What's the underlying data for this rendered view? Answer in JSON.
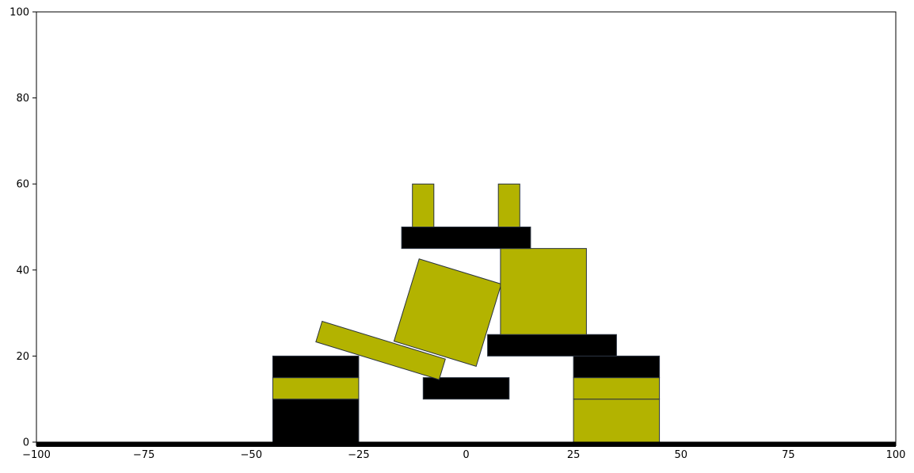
{
  "chart_data": {
    "type": "blocks",
    "xlim": [
      -100,
      100
    ],
    "ylim": [
      0,
      100
    ],
    "x_ticks": [
      -100,
      -75,
      -50,
      -25,
      0,
      25,
      50,
      75,
      100
    ],
    "x_tick_labels": [
      "−100",
      "−75",
      "−50",
      "−25",
      "0",
      "25",
      "50",
      "75",
      "100"
    ],
    "y_ticks": [
      0,
      20,
      40,
      60,
      80,
      100
    ],
    "y_tick_labels": [
      "0",
      "20",
      "40",
      "60",
      "80",
      "100"
    ],
    "grid": false,
    "colors": {
      "olive": "#b3b300",
      "black": "#000000",
      "edge": "#2a3340"
    },
    "ground": {
      "x0": -100,
      "x1": 100,
      "y0": -1,
      "y1": 0,
      "color": "black"
    },
    "blocks": [
      {
        "name": "left-base-black",
        "cx": -35,
        "cy": 5,
        "w": 20,
        "h": 10,
        "angle": 0,
        "color": "black"
      },
      {
        "name": "left-mid-olive",
        "cx": -35,
        "cy": 12.5,
        "w": 20,
        "h": 5,
        "angle": 0,
        "color": "olive"
      },
      {
        "name": "left-top-black",
        "cx": -35,
        "cy": 17.5,
        "w": 20,
        "h": 5,
        "angle": 0,
        "color": "black"
      },
      {
        "name": "right-base-olive-lower",
        "cx": 35,
        "cy": 5,
        "w": 20,
        "h": 10,
        "angle": 0,
        "color": "olive"
      },
      {
        "name": "right-base-olive-upper",
        "cx": 35,
        "cy": 12.5,
        "w": 20,
        "h": 5,
        "angle": 0,
        "color": "olive"
      },
      {
        "name": "right-top-black",
        "cx": 35,
        "cy": 17.5,
        "w": 20,
        "h": 5,
        "angle": 0,
        "color": "black"
      },
      {
        "name": "center-small-black",
        "cx": 0,
        "cy": 12.5,
        "w": 20,
        "h": 5,
        "angle": 0,
        "color": "black"
      },
      {
        "name": "right-beam-black",
        "cx": 20,
        "cy": 22.5,
        "w": 30,
        "h": 5,
        "angle": 0,
        "color": "black"
      },
      {
        "name": "tilted-plank-olive",
        "cx": -19.9,
        "cy": 21.3,
        "w": 30,
        "h": 5,
        "angle": -17,
        "color": "olive"
      },
      {
        "name": "tilted-square-olive",
        "cx": -4.3,
        "cy": 30.1,
        "w": 20,
        "h": 20,
        "angle": -17,
        "color": "olive"
      },
      {
        "name": "big-square-olive",
        "cx": 18,
        "cy": 35,
        "w": 20,
        "h": 20,
        "angle": 0,
        "color": "olive"
      },
      {
        "name": "top-beam-black",
        "cx": 0,
        "cy": 47.5,
        "w": 30,
        "h": 5,
        "angle": 0,
        "color": "black"
      },
      {
        "name": "left-post-olive",
        "cx": -10,
        "cy": 55,
        "w": 5,
        "h": 10,
        "angle": 0,
        "color": "olive"
      },
      {
        "name": "right-post-olive",
        "cx": 10,
        "cy": 55,
        "w": 5,
        "h": 10,
        "angle": 0,
        "color": "olive"
      }
    ]
  }
}
